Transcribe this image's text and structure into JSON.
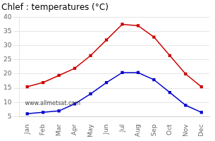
{
  "chart_data": {
    "type": "line",
    "title": "Chlef : temperatures (°C)",
    "categories": [
      "Jan",
      "Feb",
      "Mar",
      "Apr",
      "May",
      "Jun",
      "Jul",
      "Aug",
      "Sep",
      "Oct",
      "Nov",
      "Dec"
    ],
    "series": [
      {
        "color": "#cc0000",
        "marker": "square",
        "values": [
          15.5,
          17.0,
          19.5,
          22.0,
          26.5,
          32.0,
          37.5,
          37.0,
          33.0,
          26.5,
          20.0,
          15.5
        ]
      },
      {
        "color": "#0000cc",
        "marker": "square",
        "values": [
          6.0,
          6.5,
          7.0,
          9.5,
          13.0,
          17.0,
          20.5,
          20.5,
          18.0,
          13.5,
          9.0,
          6.5
        ]
      }
    ],
    "ylim": [
      5,
      40
    ],
    "yticks": [
      5,
      10,
      15,
      20,
      25,
      30,
      35,
      40
    ],
    "grid": true,
    "annotations": [
      {
        "text": "www.allmetsat.com"
      }
    ]
  }
}
